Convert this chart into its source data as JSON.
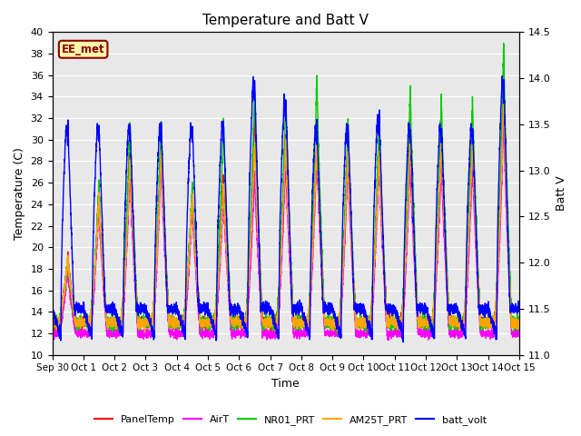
{
  "title": "Temperature and Batt V",
  "xlabel": "Time",
  "ylabel_left": "Temperature (C)",
  "ylabel_right": "Batt V",
  "ylim_left": [
    10,
    40
  ],
  "ylim_right": [
    11.0,
    14.5
  ],
  "annotation_text": "EE_met",
  "annotation_color": "#8B0000",
  "series": {
    "PanelTemp": {
      "color": "#FF0000",
      "lw": 1.0
    },
    "AirT": {
      "color": "#FF00FF",
      "lw": 1.0
    },
    "NR01_PRT": {
      "color": "#00CC00",
      "lw": 1.0
    },
    "AM25T_PRT": {
      "color": "#FFA500",
      "lw": 1.0
    },
    "batt_volt": {
      "color": "#0000FF",
      "lw": 1.0
    }
  },
  "xtick_labels": [
    "Sep 30",
    "Oct 1",
    "Oct 2",
    "Oct 3",
    "Oct 4",
    "Oct 5",
    "Oct 6",
    "Oct 7",
    "Oct 8",
    "Oct 9",
    "Oct 10",
    "Oct 11",
    "Oct 12",
    "Oct 13",
    "Oct 14",
    "Oct 15"
  ],
  "background_color": "#E8E8E8",
  "figure_background": "#FFFFFF",
  "grid_color": "#FFFFFF",
  "legend_entries": [
    "PanelTemp",
    "AirT",
    "NR01_PRT",
    "AM25T_PRT",
    "batt_volt"
  ],
  "peak_temps_nro1": [
    19,
    26,
    32,
    32,
    26,
    32,
    35,
    34,
    36,
    32,
    32,
    35,
    34,
    34,
    39
  ],
  "peak_temps_panel": [
    19,
    25,
    29,
    30,
    25,
    27,
    33,
    31,
    30,
    29,
    30,
    31,
    30,
    30,
    34
  ],
  "peak_temps_air": [
    18,
    24,
    27,
    28,
    24,
    25,
    27,
    28,
    29,
    28,
    28,
    28,
    28,
    28,
    32
  ],
  "peak_temps_am25t": [
    19,
    25,
    28,
    29,
    25,
    26,
    30,
    30,
    30,
    29,
    29,
    30,
    30,
    30,
    34
  ],
  "peak_batt": [
    13.5,
    13.5,
    13.5,
    13.5,
    13.5,
    13.5,
    14.0,
    13.8,
    13.5,
    13.5,
    13.6,
    13.5,
    13.5,
    13.5,
    14.0
  ],
  "night_temp": 13.0,
  "night_batt": 11.5
}
